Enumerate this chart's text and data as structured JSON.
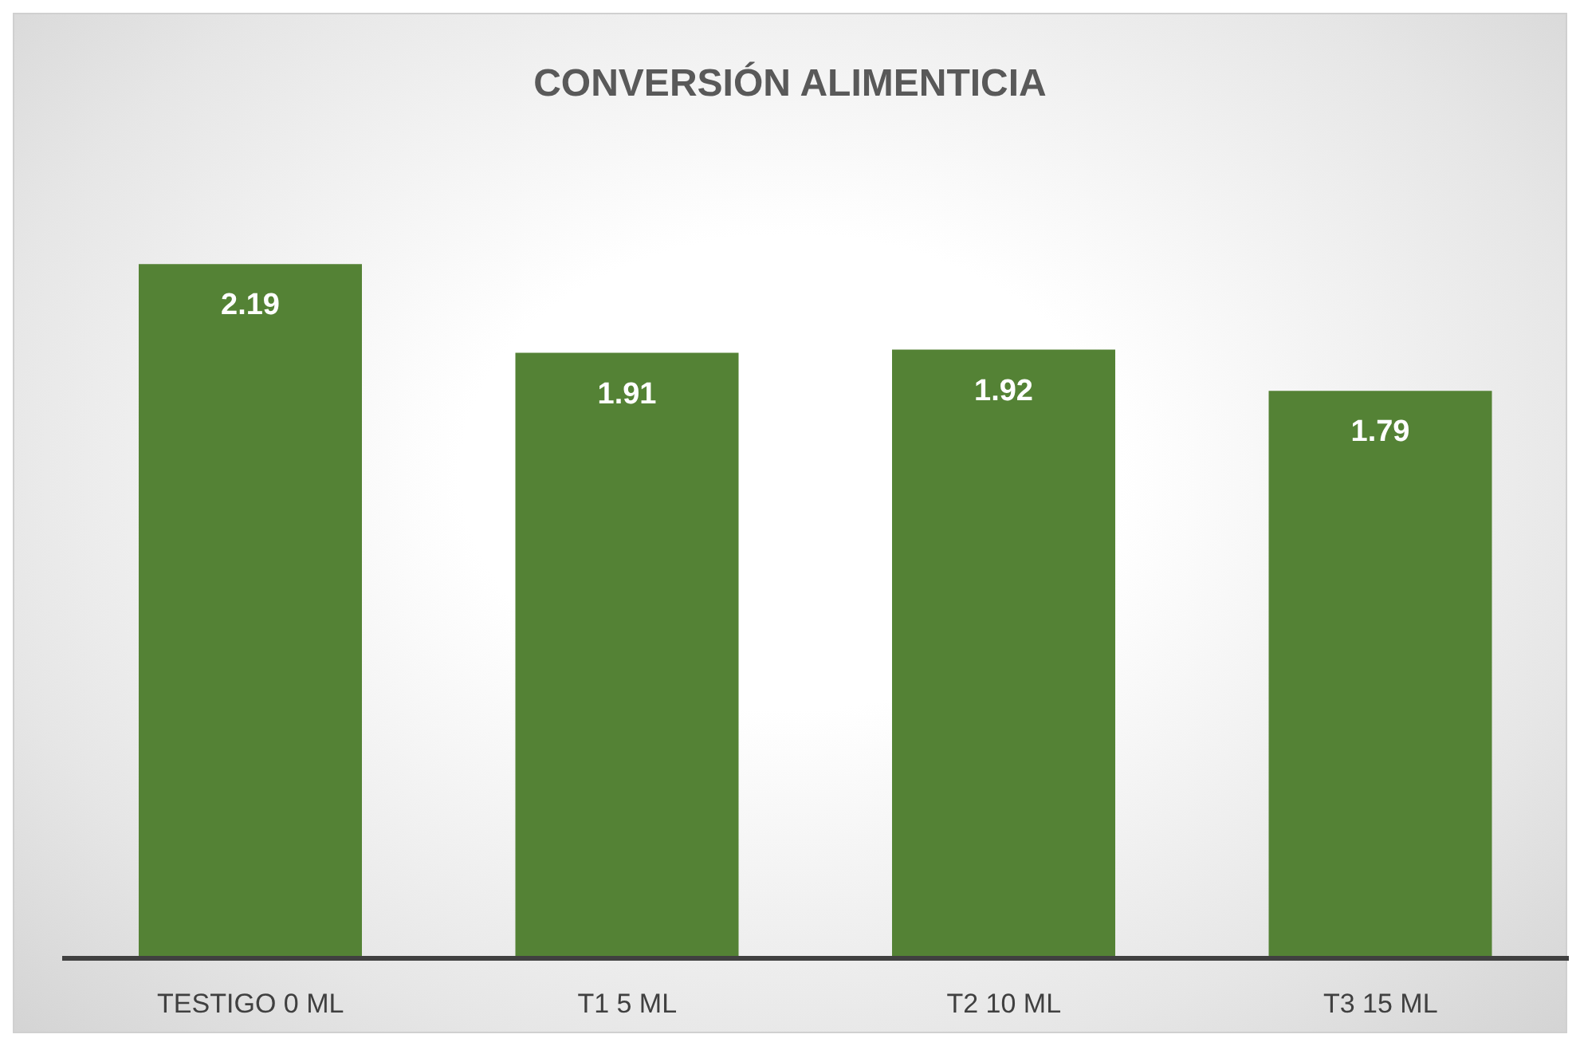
{
  "chart_data": {
    "type": "bar",
    "title": "CONVERSIÓN ALIMENTICIA",
    "categories": [
      "TESTIGO 0 ML",
      "T1 5 ML",
      "T2 10 ML",
      "T3 15 ML"
    ],
    "values": [
      2.19,
      1.91,
      1.92,
      1.79
    ],
    "color": "#548235",
    "data_labels": true
  }
}
